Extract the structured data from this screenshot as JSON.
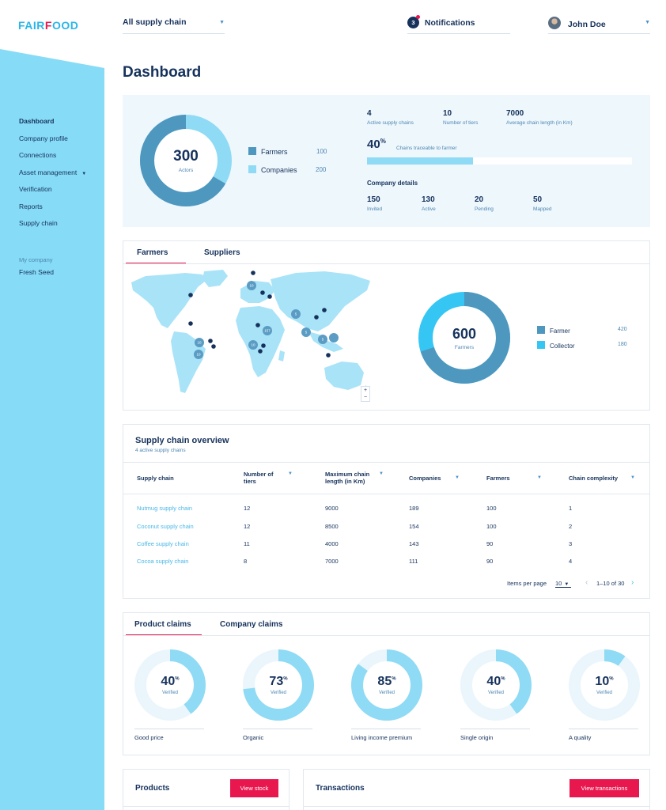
{
  "brand": {
    "logo_pre": "FAIR",
    "logo_r": "F",
    "logo_post": "OOD"
  },
  "colors": {
    "sidebar": "#86dbf6",
    "accent_red": "#e8184f",
    "navy": "#16325c",
    "donut_dark": "#4e97bf",
    "donut_light": "#8fdaf4",
    "cyan": "#35c6f4"
  },
  "topbar": {
    "supply_chain_selector": "All supply chain",
    "notifications_count": "3",
    "notifications_label": "Notifications",
    "user_name": "John Doe"
  },
  "sidebar": {
    "items": [
      {
        "label": "Dashboard"
      },
      {
        "label": "Company profile"
      },
      {
        "label": "Connections"
      },
      {
        "label": "Asset management"
      },
      {
        "label": "Verification"
      },
      {
        "label": "Reports"
      },
      {
        "label": "Supply chain"
      }
    ],
    "my_company_label": "My company",
    "my_company_name": "Fresh Seed"
  },
  "page_title": "Dashboard",
  "summary": {
    "actors_total": "300",
    "actors_label": "Actors",
    "legend": [
      {
        "label": "Farmers",
        "value": "100",
        "color": "#4e97bf"
      },
      {
        "label": "Companies",
        "value": "200",
        "color": "#8fdaf4"
      }
    ],
    "stats": [
      {
        "value": "4",
        "label": "Active supply chains"
      },
      {
        "value": "10",
        "label": "Number of tiers"
      },
      {
        "value": "7000",
        "label": "Average chain length (in Km)"
      }
    ],
    "traceable_pct": "40",
    "traceable_sign": "%",
    "traceable_fraction": 0.4,
    "traceable_label": "Chains traceable to farmer",
    "company_details_title": "Company details",
    "company_details": [
      {
        "value": "150",
        "label": "Invited"
      },
      {
        "value": "130",
        "label": "Active"
      },
      {
        "value": "20",
        "label": "Pending"
      },
      {
        "value": "50",
        "label": "Mapped"
      }
    ]
  },
  "map_card": {
    "tabs": [
      {
        "label": "Farmers"
      },
      {
        "label": "Suppliers"
      }
    ],
    "cluster_labels": [
      "10",
      "5",
      "157",
      "10",
      "5",
      "5",
      "10",
      "10"
    ],
    "zoom_in": "+",
    "zoom_out": "−",
    "total": "600",
    "total_label": "Farmers",
    "legend": [
      {
        "label": "Farmer",
        "value": "420",
        "color": "#4e97bf"
      },
      {
        "label": "Collector",
        "value": "180",
        "color": "#35c6f4"
      }
    ]
  },
  "supply_table": {
    "title": "Supply chain overview",
    "subtitle": "4 active supply chains",
    "headers": {
      "supply_chain": "Supply chain",
      "tiers_1": "Number of",
      "tiers_2": "tiers",
      "length_1": "Maximum chain",
      "length_2": "length (in Km)",
      "companies": "Companies",
      "farmers": "Farmers",
      "complexity": "Chain complexity"
    },
    "rows": [
      {
        "name": "Nutmug supply chain",
        "tiers": "12",
        "length": "9000",
        "companies": "189",
        "farmers": "100",
        "complexity": "1"
      },
      {
        "name": "Coconut supply chain",
        "tiers": "12",
        "length": "8500",
        "companies": "154",
        "farmers": "100",
        "complexity": "2"
      },
      {
        "name": "Coffee supply chain",
        "tiers": "11",
        "length": "4000",
        "companies": "143",
        "farmers": "90",
        "complexity": "3"
      },
      {
        "name": "Cocoa supply chain",
        "tiers": "8",
        "length": "7000",
        "companies": "111",
        "farmers": "90",
        "complexity": "4"
      }
    ],
    "items_per_page_label": "Items per page",
    "items_per_page_value": "10",
    "range": "1–10 of 30"
  },
  "claims": {
    "tabs": [
      {
        "label": "Product claims"
      },
      {
        "label": "Company claims"
      }
    ],
    "verified_label": "Verified",
    "pct_sign": "%",
    "items": [
      {
        "name": "Good price",
        "pct": "40",
        "fraction": 0.4
      },
      {
        "name": "Organic",
        "pct": "73",
        "fraction": 0.73
      },
      {
        "name": "Living income premium",
        "pct": "85",
        "fraction": 0.85
      },
      {
        "name": "Single origin",
        "pct": "40",
        "fraction": 0.4
      },
      {
        "name": "A quality",
        "pct": "10",
        "fraction": 0.1
      }
    ]
  },
  "products": {
    "title": "Products",
    "button": "View stock"
  },
  "transactions": {
    "title": "Transactions",
    "button": "View transactions"
  }
}
